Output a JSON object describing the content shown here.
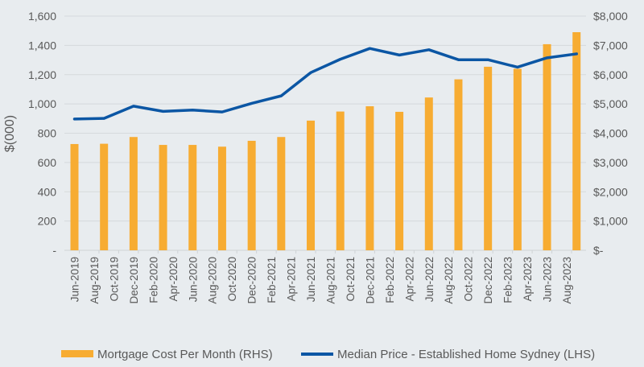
{
  "chart_data": {
    "type": "bar+line",
    "title": "",
    "ylabel_left": "$(000)",
    "ylabel_right": "",
    "left_axis": {
      "range": [
        0,
        1600
      ],
      "ticks": [
        "-",
        "200",
        "400",
        "600",
        "800",
        "1,000",
        "1,200",
        "1,400",
        "1,600"
      ]
    },
    "right_axis": {
      "range": [
        0,
        8000
      ],
      "ticks": [
        "$-",
        "$1,000",
        "$2,000",
        "$3,000",
        "$4,000",
        "$5,000",
        "$6,000",
        "$7,000",
        "$8,000"
      ]
    },
    "x_tick_labels": [
      "Jun-2019",
      "Aug-2019",
      "Oct-2019",
      "Dec-2019",
      "Feb-2020",
      "Apr-2020",
      "Jun-2020",
      "Aug-2020",
      "Oct-2020",
      "Dec-2020",
      "Feb-2021",
      "Apr-2021",
      "Jun-2021",
      "Aug-2021",
      "Oct-2021",
      "Dec-2021",
      "Feb-2022",
      "Apr-2022",
      "Jun-2022",
      "Aug-2022",
      "Oct-2022",
      "Dec-2022",
      "Feb-2023",
      "Apr-2023",
      "Jun-2023",
      "Aug-2023"
    ],
    "grid": true,
    "legend_position": "bottom",
    "series": [
      {
        "name": "Mortgage Cost Per Month (RHS)",
        "type": "bar",
        "axis": "right",
        "color": "#f7ac32",
        "values": [
          3630,
          3640,
          3870,
          3600,
          3600,
          3540,
          3740,
          3870,
          4430,
          4740,
          4920,
          4730,
          5220,
          5840,
          6270,
          6200,
          7040,
          7450
        ]
      },
      {
        "name": "Median Price - Established Home Sydney (LHS)",
        "type": "line",
        "axis": "left",
        "color": "#0b56a4",
        "values": [
          897,
          901,
          985,
          949,
          958,
          945,
          1004,
          1055,
          1214,
          1305,
          1379,
          1334,
          1370,
          1302,
          1302,
          1251,
          1315,
          1342
        ]
      }
    ]
  }
}
